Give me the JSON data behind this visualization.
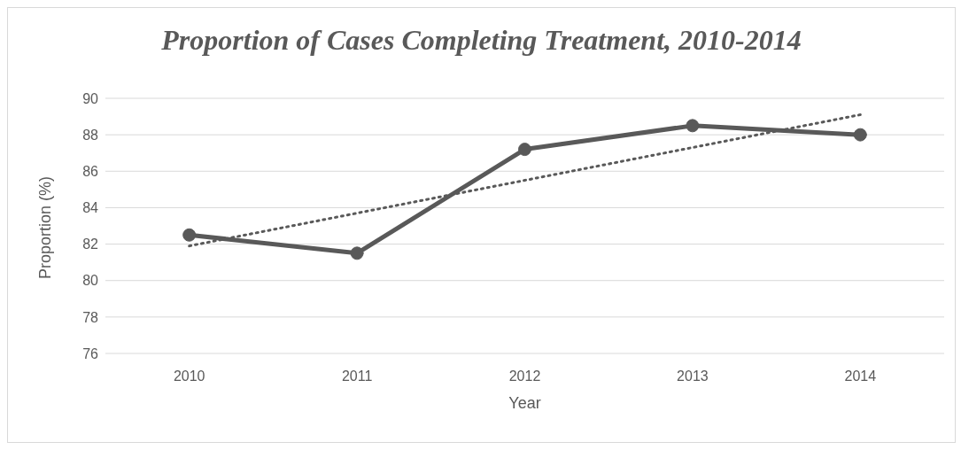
{
  "chart_data": {
    "type": "line",
    "title": "Proportion of Cases Completing Treatment, 2010-2014",
    "xlabel": "Year",
    "ylabel": "Proportion (%)",
    "categories": [
      "2010",
      "2011",
      "2012",
      "2013",
      "2014"
    ],
    "series": [
      {
        "color": "#595959",
        "values": [
          82.5,
          81.5,
          87.2,
          88.5,
          88.0
        ],
        "marker": "circle",
        "line_style": "solid"
      },
      {
        "type": "line",
        "color": "#595959",
        "values": [
          81.9,
          83.7,
          85.5,
          87.3,
          89.1
        ],
        "marker": "none",
        "line_style": "dotted"
      }
    ],
    "ylim": [
      76,
      90
    ],
    "yticks": [
      76,
      78,
      80,
      82,
      84,
      86,
      88,
      90
    ],
    "grid": "y",
    "legend": false
  }
}
